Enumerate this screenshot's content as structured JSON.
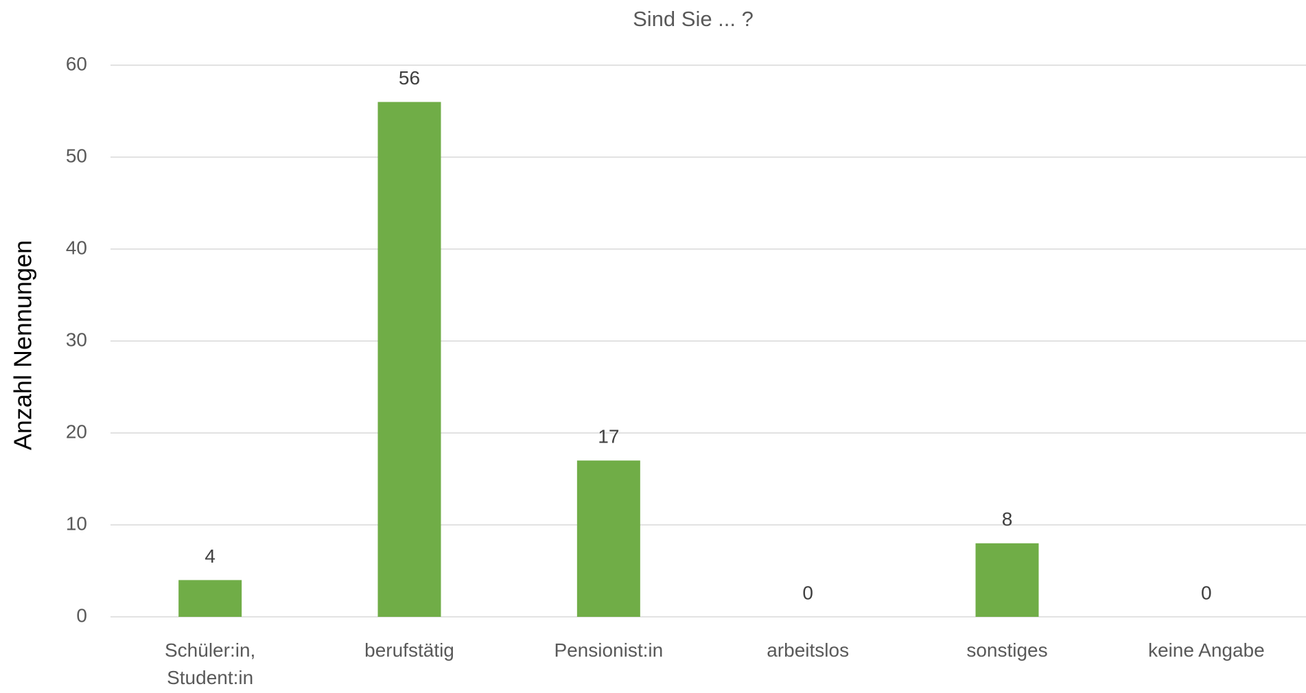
{
  "chart_data": {
    "type": "bar",
    "title": "Sind Sie ... ?",
    "y_label": "Anzahl Nennungen",
    "categories": [
      "Schüler:in, Student:in",
      "berufstätig",
      "Pensionist:in",
      "arbeitslos",
      "sonstiges",
      "keine Angabe"
    ],
    "values": [
      4,
      56,
      17,
      0,
      8,
      0
    ],
    "color": "#70ad47",
    "ylim": [
      0,
      60
    ],
    "yticks": [
      0,
      10,
      20,
      30,
      40,
      50,
      60
    ],
    "grid": true
  }
}
